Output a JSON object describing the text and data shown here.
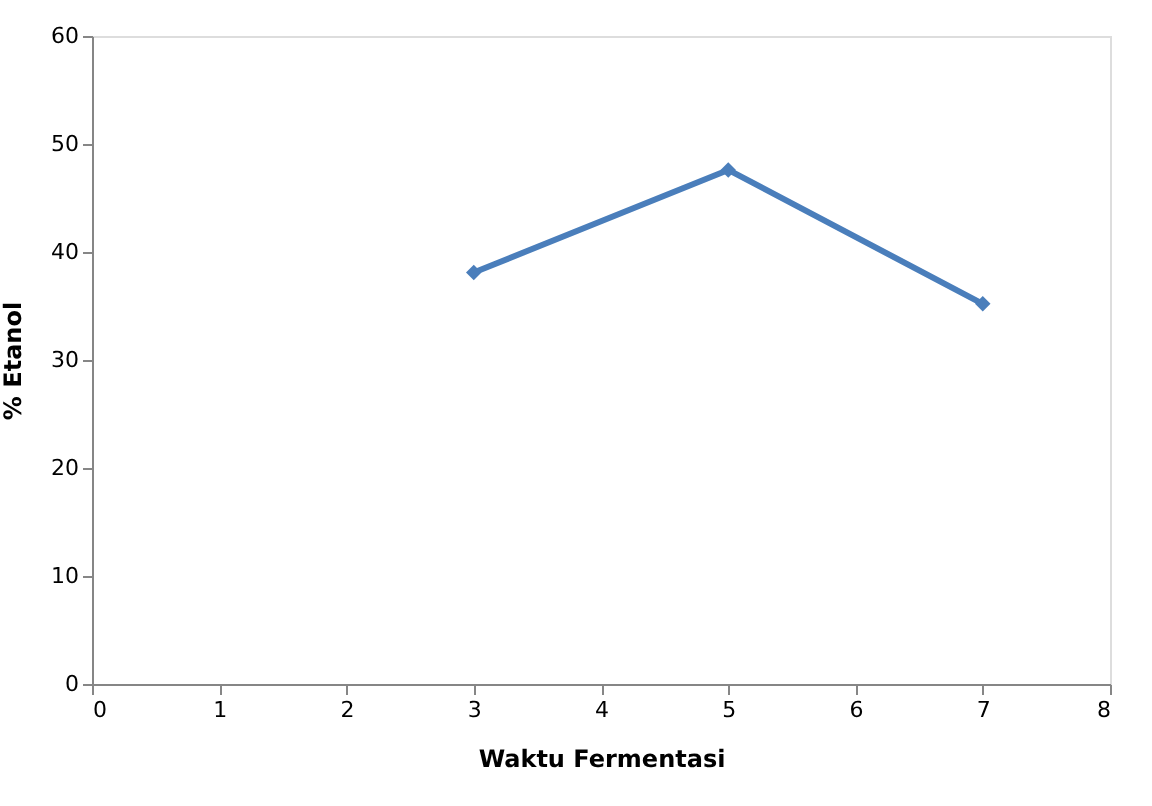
{
  "chart_data": {
    "type": "line",
    "xlabel": "Waktu Fermentasi",
    "ylabel": "% Etanol",
    "x": [
      3,
      5,
      7
    ],
    "series": [
      {
        "color": "#4a7ebb",
        "values": [
          38.1,
          47.6,
          35.2
        ]
      }
    ],
    "xlim": [
      0,
      8
    ],
    "xticks": [
      0,
      1,
      2,
      3,
      4,
      5,
      6,
      7,
      8
    ],
    "ylim": [
      0,
      60
    ],
    "yticks": [
      0,
      10,
      20,
      30,
      40,
      50,
      60
    ],
    "grid": false,
    "marker": "diamond",
    "line_style": "solid"
  }
}
